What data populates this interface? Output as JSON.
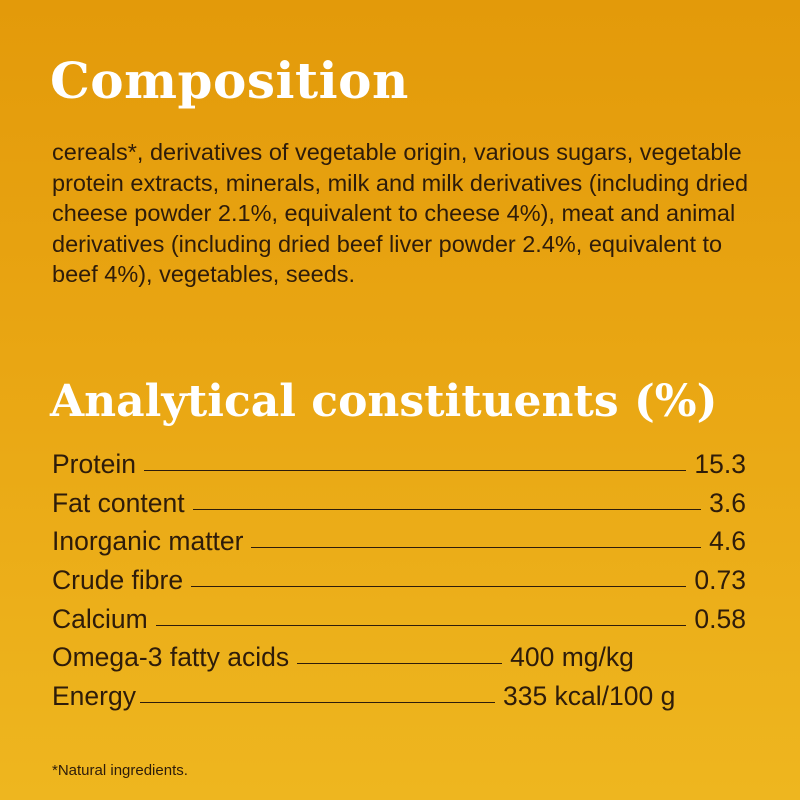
{
  "composition": {
    "title": "Composition",
    "text": "cereals*, derivatives of vegetable origin, various sugars, vegetable protein extracts, minerals, milk and milk derivatives (including dried cheese powder 2.1%, equivalent to cheese 4%), meat and animal derivatives (including dried beef liver powder 2.4%, equivalent to beef 4%), vegetables, seeds."
  },
  "analytical": {
    "title": "Analytical constituents (%)",
    "rows": [
      {
        "label": "Protein",
        "value": "15.3"
      },
      {
        "label": "Fat content",
        "value": "3.6"
      },
      {
        "label": "Inorganic matter",
        "value": "4.6"
      },
      {
        "label": "Crude fibre",
        "value": "0.73"
      },
      {
        "label": "Calcium",
        "value": "0.58"
      },
      {
        "label": "Omega-3 fatty acids",
        "value": "400 mg/kg"
      },
      {
        "label": "Energy",
        "value": "335 kcal/100 g"
      }
    ]
  },
  "footnote": "*Natural ingredients.",
  "colors": {
    "background_top": "#E39A0A",
    "background_bottom": "#EEB61F",
    "heading": "#FFFFFF",
    "text": "#2E1C0A"
  }
}
